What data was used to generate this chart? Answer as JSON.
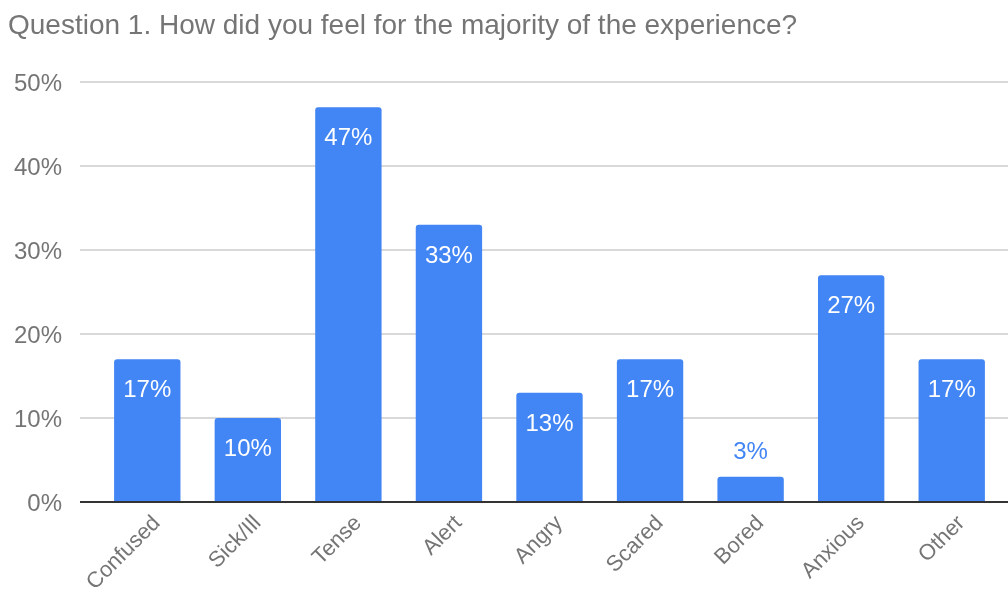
{
  "chart_data": {
    "type": "bar",
    "title": "Question 1. How did you feel for the majority of the experience?",
    "categories": [
      "Confused",
      "Sick/Ill",
      "Tense",
      "Alert",
      "Angry",
      "Scared",
      "Bored",
      "Anxious",
      "Other"
    ],
    "values": [
      17,
      10,
      47,
      33,
      13,
      17,
      3,
      27,
      17
    ],
    "value_labels": [
      "17%",
      "10%",
      "47%",
      "33%",
      "13%",
      "17%",
      "3%",
      "27%",
      "17%"
    ],
    "color": "#4285f4",
    "ylim": [
      0,
      50
    ],
    "yticks": [
      {
        "value": 0,
        "label": "0%"
      },
      {
        "value": 10,
        "label": "10%"
      },
      {
        "value": 20,
        "label": "20%"
      },
      {
        "value": 30,
        "label": "30%"
      },
      {
        "value": 40,
        "label": "40%"
      },
      {
        "value": 50,
        "label": "50%"
      }
    ],
    "grid": "y"
  }
}
